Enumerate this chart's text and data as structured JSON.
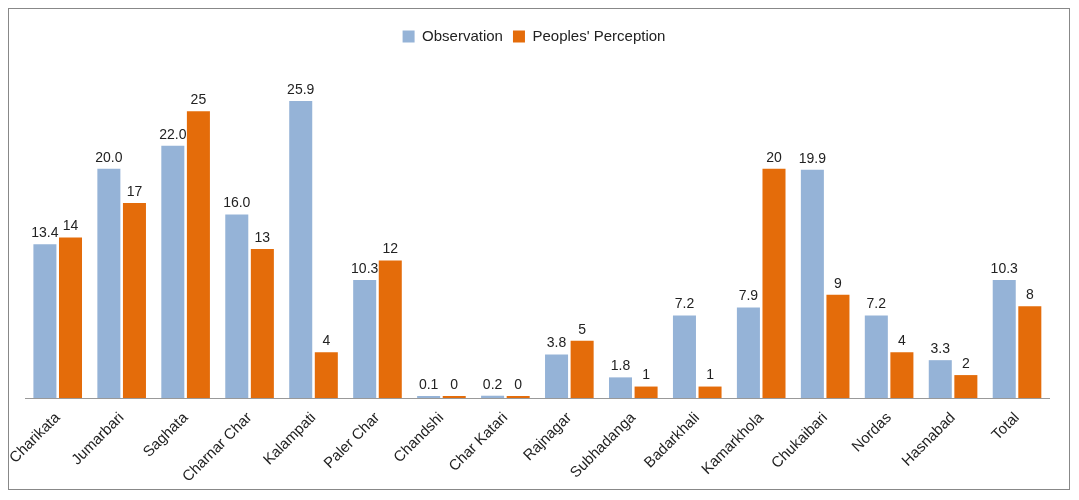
{
  "chart_data": {
    "type": "bar",
    "legend": "top",
    "grid": false,
    "categories": [
      "Charikata",
      "Jumarbari",
      "Saghata",
      "Charnar Char",
      "Kalampati",
      "Paler Char",
      "Chandshi",
      "Char Katari",
      "Rajnagar",
      "Subhadanga",
      "Badarkhali",
      "Kamarkhola",
      "Chukaibari",
      "Nordas",
      "Hasnabad",
      "Total"
    ],
    "series": [
      {
        "name": "Observation",
        "color": "#95b3d7",
        "values": [
          13.4,
          20.0,
          22.0,
          16.0,
          25.9,
          10.3,
          0.1,
          0.2,
          3.8,
          1.8,
          7.2,
          7.9,
          19.9,
          7.2,
          3.3,
          10.3
        ],
        "value_labels": [
          "13.4",
          "20.0",
          "22.0",
          "16.0",
          "25.9",
          "10.3",
          "0.1",
          "0.2",
          "3.8",
          "1.8",
          "7.2",
          "7.9",
          "19.9",
          "7.2",
          "3.3",
          "10.3"
        ]
      },
      {
        "name": "Peoples' Perception",
        "color": "#e46c0a",
        "values": [
          14,
          17,
          25,
          13,
          4,
          12,
          0,
          0,
          5,
          1,
          1,
          20,
          9,
          4,
          2,
          8
        ],
        "value_labels": [
          "14",
          "17",
          "25",
          "13",
          "4",
          "12",
          "0",
          "0",
          "5",
          "1",
          "1",
          "20",
          "9",
          "4",
          "2",
          "8"
        ]
      }
    ]
  }
}
